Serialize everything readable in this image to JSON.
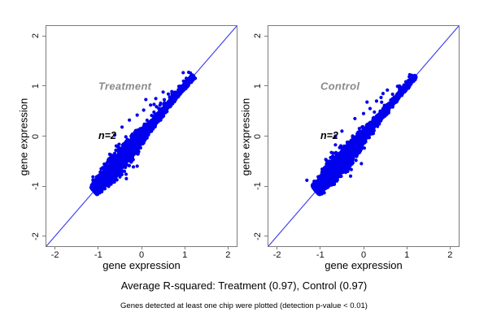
{
  "page": {
    "background": "#ffffff"
  },
  "captions": {
    "r_squared": "Average R-squared: Treatment (0.97), Control (0.97)",
    "note": "Genes detected at least one chip were plotted (detection p-value < 0.01)"
  },
  "chart_data": [
    {
      "type": "scatter",
      "panel_label": "Treatment",
      "annotation": "n=2",
      "xlabel": "gene expression",
      "ylabel": "gene expression",
      "xlim": [
        -2.2,
        2.2
      ],
      "ylim": [
        -2.2,
        2.2
      ],
      "xticks": [
        -2,
        -1,
        0,
        1,
        2
      ],
      "yticks": [
        -2,
        -1,
        0,
        1,
        2
      ],
      "grid": false,
      "r_squared": 0.97,
      "reference_line": "y = x",
      "point_color": "#0101ee",
      "line_color": "#3a3af2",
      "frame_color": "#7b7b7b",
      "panel_label_color": "#8a8a8a",
      "cluster": {
        "n_points": 3900,
        "diagonal_range": [
          -1.1,
          1.2
        ],
        "seed": 17,
        "outliers": [
          [
            0.21,
            0.62
          ],
          [
            0.33,
            0.75
          ],
          [
            0.05,
            0.52
          ],
          [
            -0.1,
            0.42
          ],
          [
            0.5,
            0.88
          ],
          [
            -0.45,
            0.18
          ],
          [
            -0.62,
            0.02
          ],
          [
            0.62,
            0.84
          ],
          [
            0.1,
            0.73
          ],
          [
            -0.28,
            0.32
          ],
          [
            -0.35,
            -0.85
          ],
          [
            -0.1,
            -0.6
          ],
          [
            0.4,
            0.55
          ]
        ]
      }
    },
    {
      "type": "scatter",
      "panel_label": "Control",
      "annotation": "n=2",
      "xlabel": "gene expression",
      "ylabel": "gene expression",
      "xlim": [
        -2.2,
        2.2
      ],
      "ylim": [
        -2.2,
        2.2
      ],
      "xticks": [
        -2,
        -1,
        0,
        1,
        2
      ],
      "yticks": [
        -2,
        -1,
        0,
        1,
        2
      ],
      "grid": false,
      "r_squared": 0.97,
      "reference_line": "y = x",
      "point_color": "#0101ee",
      "line_color": "#3a3af2",
      "frame_color": "#7b7b7b",
      "panel_label_color": "#8a8a8a",
      "cluster": {
        "n_points": 3900,
        "diagonal_range": [
          -1.1,
          1.2
        ],
        "seed": 53,
        "outliers": [
          [
            0.15,
            0.55
          ],
          [
            0.3,
            0.7
          ],
          [
            -0.2,
            0.35
          ],
          [
            0.45,
            0.85
          ],
          [
            -0.5,
            0.1
          ],
          [
            0.0,
            0.45
          ],
          [
            -0.3,
            -0.8
          ],
          [
            0.55,
            0.92
          ],
          [
            -0.05,
            -0.55
          ],
          [
            0.25,
            0.48
          ],
          [
            -0.65,
            0.0
          ],
          [
            0.08,
            0.68
          ]
        ]
      }
    }
  ]
}
